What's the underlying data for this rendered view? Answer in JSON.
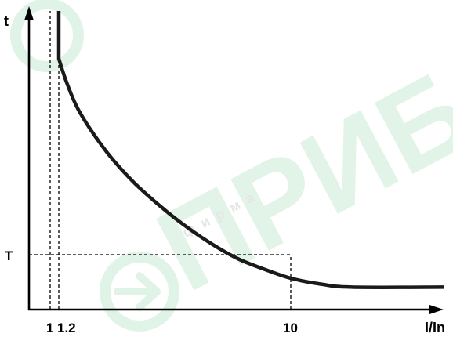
{
  "watermark": {
    "brand_text": "ПРИБОР",
    "small_text": "фирма",
    "color": "#dff3e6"
  },
  "chart_data": {
    "type": "line",
    "title": "",
    "xlabel": "I/In",
    "ylabel": "t",
    "x_ticks": [
      {
        "value": 1,
        "label": "1"
      },
      {
        "value": 1.2,
        "label": "1.2"
      },
      {
        "value": 10,
        "label": "10"
      }
    ],
    "y_ticks": [
      {
        "label": "T"
      }
    ],
    "xlim": [
      0.6,
      15
    ],
    "y_values_relative": true,
    "grid": false,
    "series": [
      {
        "points": [
          [
            1.2,
            1.0
          ],
          [
            1.2,
            0.84
          ],
          [
            1.5,
            0.76
          ],
          [
            2,
            0.66
          ],
          [
            3,
            0.53
          ],
          [
            4,
            0.43
          ],
          [
            5,
            0.35
          ],
          [
            6,
            0.28
          ],
          [
            7,
            0.22
          ],
          [
            8,
            0.17
          ],
          [
            9,
            0.135
          ],
          [
            10,
            0.105
          ],
          [
            11,
            0.085
          ],
          [
            12,
            0.075
          ],
          [
            15,
            0.075
          ]
        ]
      }
    ],
    "reference_lines": [
      {
        "axis": "x",
        "value": 1
      },
      {
        "axis": "x",
        "value": 1.2
      },
      {
        "axis": "x",
        "value": 10
      },
      {
        "axis": "y",
        "at": "T"
      }
    ],
    "colors": {
      "curve": "#1a1a1a",
      "axes": "#000000",
      "guides": "#000000"
    }
  }
}
